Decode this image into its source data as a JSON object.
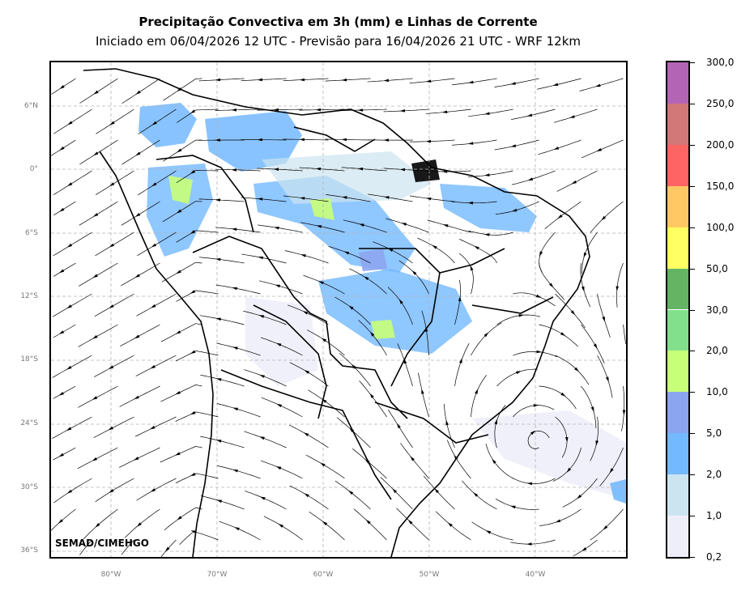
{
  "title": "Precipitação Convectiva em 3h (mm) e Linhas de Corrente",
  "subtitle": "Iniciado em 06/04/2026 12 UTC - Previsão para 16/04/2026 21 UTC - WRF 12km",
  "credit": "SEMAD/CIMEHGO",
  "lat_labels": [
    "6°N",
    "0°",
    "6°S",
    "12°S",
    "18°S",
    "24°S",
    "30°S",
    "36°S"
  ],
  "lon_labels": [
    "80°W",
    "70°W",
    "60°W",
    "50°W",
    "40°W"
  ],
  "colorbar": {
    "labels": [
      "0,2",
      "1,0",
      "2,0",
      "5,0",
      "10,0",
      "20,0",
      "30,0",
      "50,0",
      "100,0",
      "150,0",
      "200,0",
      "250,0",
      "300,0"
    ],
    "colors": [
      "#eeeefa",
      "#cce4f0",
      "#73b9ff",
      "#8ca5f0",
      "#c8ff78",
      "#82e08c",
      "#64b464",
      "#ffff64",
      "#ffc864",
      "#ff6464",
      "#d27878",
      "#b464b4"
    ]
  },
  "colors": {
    "grid": "#b4b4b4",
    "border": "#000000",
    "streamline": "#000000"
  }
}
